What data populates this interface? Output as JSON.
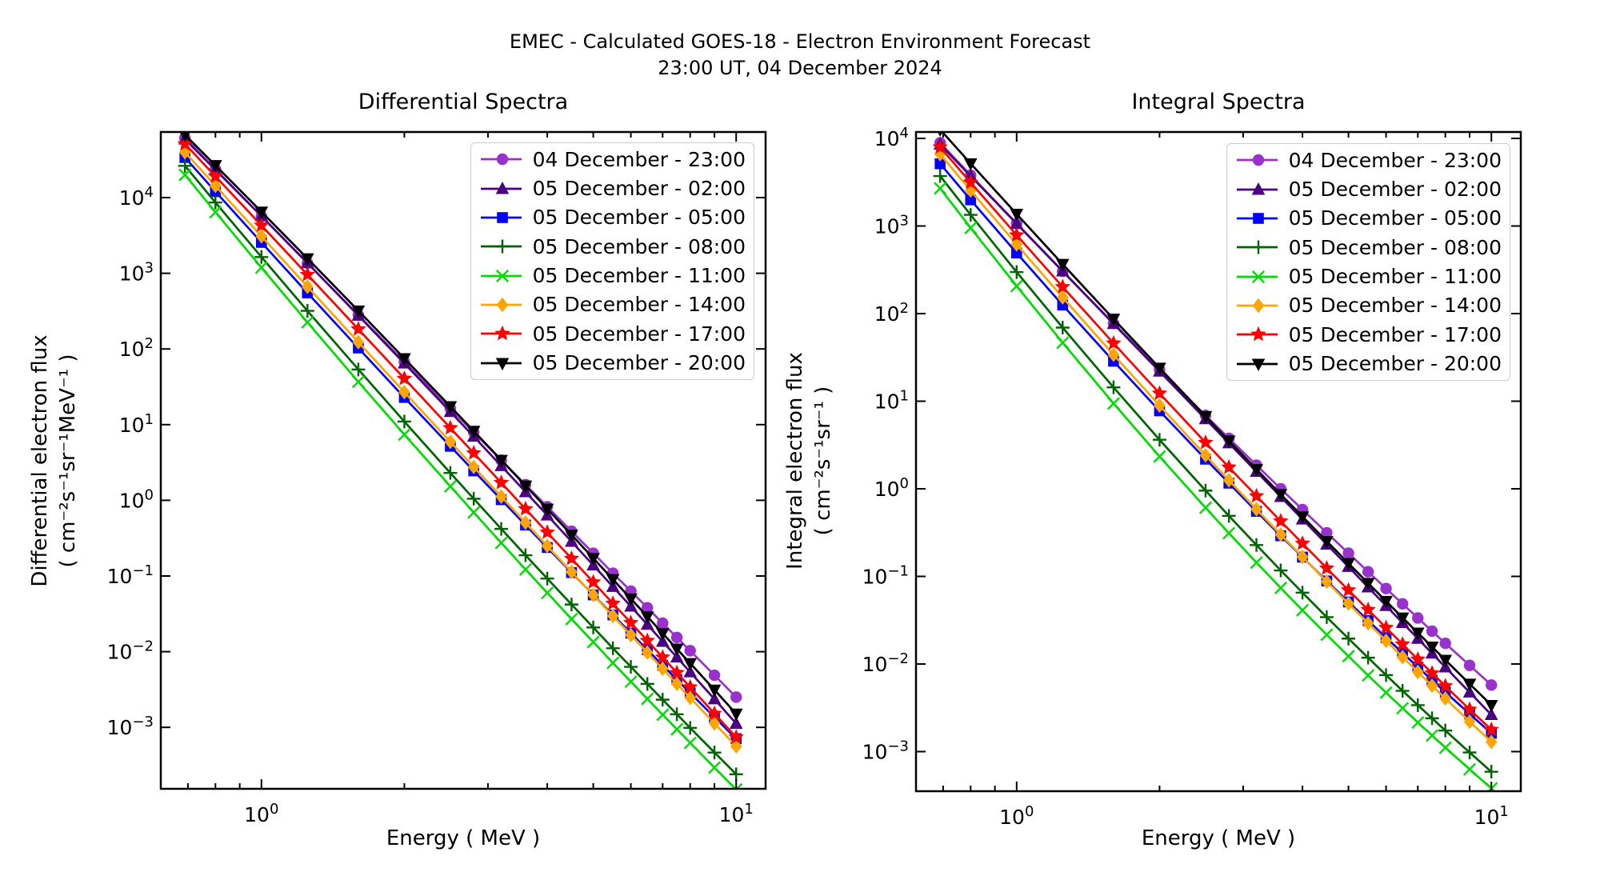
{
  "figure": {
    "suptitle_line1": "EMEC - Calculated GOES-18 - Electron Environment Forecast",
    "suptitle_line2": "23:00 UT, 04 December 2024"
  },
  "chart_data": {
    "type": "line",
    "x_scale": "log",
    "y_scale": "log",
    "grid": false,
    "legend_position": "upper-right-inside",
    "energies_mev": [
      0.69,
      0.8,
      1.0,
      1.25,
      1.6,
      2.0,
      2.5,
      2.8,
      3.2,
      3.6,
      4.0,
      4.5,
      5.0,
      5.5,
      6.0,
      6.5,
      7.0,
      7.5,
      8.0,
      9.0,
      10.0
    ],
    "series_labels": [
      "04 December - 23:00",
      "05 December - 02:00",
      "05 December - 05:00",
      "05 December - 08:00",
      "05 December - 11:00",
      "05 December - 14:00",
      "05 December - 17:00",
      "05 December - 20:00"
    ],
    "series_colors": [
      "#9932CC",
      "#4B0082",
      "#0000FF",
      "#006400",
      "#00DB00",
      "#FFA500",
      "#FF0000",
      "#000000"
    ],
    "series_markers": [
      "circle",
      "triangle-up",
      "square",
      "plus",
      "x",
      "diamond",
      "star",
      "triangle-down"
    ],
    "panels": [
      {
        "title": "Differential Spectra",
        "xlabel": "Energy ( MeV )",
        "ylabel_line1": "Differential electron flux",
        "ylabel_line2": "( cm⁻²s⁻¹sr⁻¹MeV⁻¹ )",
        "x_tick_exponents": [
          0,
          1
        ],
        "y_tick_exponents": [
          4,
          3,
          2,
          1,
          0,
          -1,
          -2,
          -3
        ],
        "xlim_log": [
          -0.212,
          1.062
        ],
        "ylim_log": [
          -3.812,
          4.867
        ],
        "flux": [
          [
            61600,
            23800,
            5690,
            1360,
            281,
            67.6,
            16.3,
            7.93,
            3.39,
            1.61,
            0.823,
            0.39,
            0.2,
            0.109,
            0.0631,
            0.038,
            0.0238,
            0.0154,
            0.0103,
            0.00488,
            0.00251
          ],
          [
            58900,
            23300,
            5690,
            1370,
            277,
            64.6,
            14.8,
            6.97,
            2.85,
            1.29,
            0.634,
            0.285,
            0.139,
            0.0721,
            0.0396,
            0.0228,
            0.0136,
            0.00843,
            0.00537,
            0.00236,
            0.00112
          ],
          [
            33900,
            12000,
            2560,
            551,
            103,
            22.9,
            5.18,
            2.45,
            1.02,
            0.471,
            0.238,
            0.111,
            0.0563,
            0.0306,
            0.0176,
            0.0106,
            0.00661,
            0.00428,
            0.00285,
            0.00136,
            0.000708
          ],
          [
            26300,
            8630,
            1640,
            319,
            53.6,
            11.0,
            2.3,
            1.05,
            0.419,
            0.188,
            0.0925,
            0.042,
            0.0209,
            0.0111,
            0.0063,
            0.00375,
            0.00232,
            0.00149,
            0.000984,
            0.000465,
            0.00024
          ],
          [
            20000,
            6420,
            1190,
            225,
            36.9,
            7.41,
            1.53,
            0.692,
            0.274,
            0.122,
            0.0598,
            0.027,
            0.0134,
            0.00711,
            0.00401,
            0.00238,
            0.00147,
            0.000943,
            0.000623,
            0.000294,
            0.000151
          ],
          [
            39800,
            14300,
            3080,
            665,
            123,
            26.9,
            5.93,
            2.76,
            1.12,
            0.507,
            0.25,
            0.113,
            0.0561,
            0.0297,
            0.0166,
            0.00975,
            0.00596,
            0.00377,
            0.00246,
            0.00113,
            0.000562
          ],
          [
            51300,
            19100,
            4290,
            960,
            183,
            40.7,
            9.05,
            4.21,
            1.71,
            0.769,
            0.377,
            0.17,
            0.083,
            0.0434,
            0.0241,
            0.014,
            0.00843,
            0.00527,
            0.0034,
            0.00152,
            0.000741
          ],
          [
            67600,
            26700,
            6500,
            1570,
            320,
            75.0,
            17.4,
            8.24,
            3.4,
            1.56,
            0.77,
            0.349,
            0.172,
            0.0903,
            0.0501,
            0.0291,
            0.0175,
            0.0109,
            0.00703,
            0.00313,
            0.00151
          ]
        ]
      },
      {
        "title": "Integral Spectra",
        "xlabel": "Energy ( MeV )",
        "ylabel_line1": "Integral electron flux",
        "ylabel_line2": "( cm⁻²s⁻¹sr⁻¹ )",
        "x_tick_exponents": [
          0,
          1
        ],
        "y_tick_exponents": [
          4,
          3,
          2,
          1,
          0,
          -1,
          -2,
          -3
        ],
        "xlim_log": [
          -0.212,
          1.062
        ],
        "ylim_log": [
          -3.452,
          4.073
        ],
        "flux": [
          [
            8910,
            3800,
            1070,
            304,
            77.5,
            22.9,
            6.89,
            3.77,
            1.86,
            1.0,
            0.579,
            0.315,
            0.184,
            0.113,
            0.0727,
            0.0486,
            0.0335,
            0.0237,
            0.0172,
            0.00964,
            0.00575
          ],
          [
            8510,
            3720,
            1060,
            305,
            76.4,
            21.9,
            6.26,
            3.32,
            1.57,
            0.811,
            0.449,
            0.232,
            0.129,
            0.0752,
            0.0462,
            0.0295,
            0.0195,
            0.0132,
            0.0092,
            0.00475,
            0.00263
          ],
          [
            5130,
            1990,
            492,
            125,
            28.6,
            7.76,
            2.18,
            1.16,
            0.553,
            0.291,
            0.166,
            0.0887,
            0.0511,
            0.0313,
            0.02,
            0.0134,
            0.00922,
            0.00655,
            0.00477,
            0.00269,
            0.00162
          ],
          [
            3720,
            1340,
            298,
            69.2,
            14.4,
            3.63,
            0.954,
            0.491,
            0.228,
            0.117,
            0.0653,
            0.0343,
            0.0195,
            0.0118,
            0.00747,
            0.00494,
            0.00339,
            0.0024,
            0.00174,
            0.000977,
            0.000589
          ],
          [
            2690,
            951,
            206,
            46.5,
            9.44,
            2.34,
            0.609,
            0.312,
            0.144,
            0.0739,
            0.0411,
            0.0216,
            0.0123,
            0.00741,
            0.00471,
            0.00313,
            0.00215,
            0.00153,
            0.00111,
            0.000627,
            0.00038
          ],
          [
            6610,
            2540,
            616,
            153,
            33.9,
            8.91,
            2.41,
            1.25,
            0.584,
            0.3,
            0.167,
            0.0871,
            0.049,
            0.0292,
            0.0184,
            0.012,
            0.00811,
            0.00565,
            0.00404,
            0.0022,
            0.00129
          ],
          [
            7940,
            3140,
            787,
            202,
            45.9,
            12.3,
            3.37,
            1.76,
            0.827,
            0.427,
            0.238,
            0.124,
            0.0697,
            0.0416,
            0.026,
            0.0168,
            0.0113,
            0.00786,
            0.0056,
            0.00303,
            0.00178
          ],
          [
            12600,
            5170,
            1370,
            367,
            86.9,
            24.0,
            6.72,
            3.54,
            1.67,
            0.865,
            0.482,
            0.252,
            0.141,
            0.0838,
            0.0522,
            0.0338,
            0.0227,
            0.0157,
            0.0111,
            0.00592,
            0.00339
          ]
        ]
      }
    ]
  }
}
